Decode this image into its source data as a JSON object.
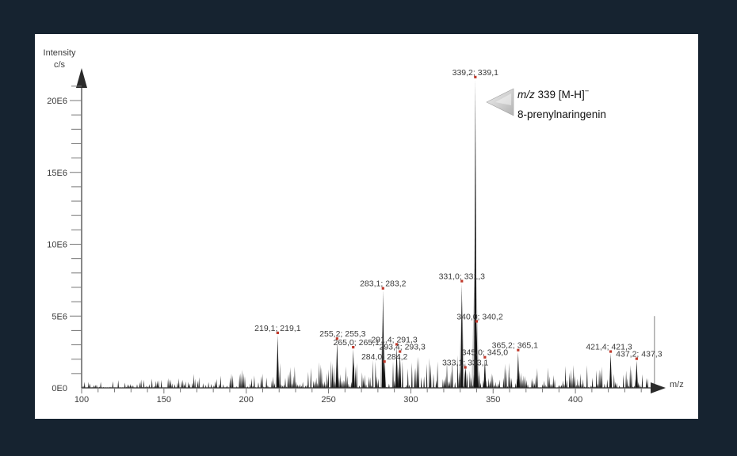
{
  "window": {
    "background_color": "#162330",
    "panel_color": "#ffffff"
  },
  "chart_data": {
    "type": "line",
    "subtype": "mass-spectrum",
    "title": "",
    "xlabel": "m/z",
    "ylabel_lines": [
      "Intensity",
      "c/s"
    ],
    "xlim": [
      100,
      450
    ],
    "ylim_e6": [
      0,
      21.5
    ],
    "grid": false,
    "x_major_ticks": [
      100,
      150,
      200,
      250,
      300,
      350,
      400
    ],
    "x_minor_step": 10,
    "x_minor_range": [
      100,
      440
    ],
    "y_major_ticks_e6": [
      0,
      5,
      10,
      15,
      20
    ],
    "y_major_tick_labels": [
      "0E0",
      "5E6",
      "10E6",
      "15E6",
      "20E6"
    ],
    "y_minor_step_e6": 1,
    "y_minor_top_e6": 21,
    "peaks": [
      {
        "mz": 219.1,
        "height_e6": 3.7,
        "label": "219,1; 219,1",
        "dx": 0,
        "flank": {
          "h": 2.5,
          "w": 3
        }
      },
      {
        "mz": 255.2,
        "height_e6": 3.3,
        "label": "255,2; 255,3",
        "dx": 7,
        "flank": {
          "h": 2.2,
          "w": 3
        }
      },
      {
        "mz": 265.0,
        "height_e6": 2.7,
        "label": "265,0; 265,1",
        "dx": 4,
        "flank": {
          "h": 1.8,
          "w": 2.5
        }
      },
      {
        "mz": 283.1,
        "height_e6": 6.8,
        "label": "283,1; 283,2",
        "dx": 0,
        "flank": {
          "h": 5.0,
          "w": 4
        }
      },
      {
        "mz": 284.0,
        "height_e6": 1.7,
        "label": "284,0; 284,2",
        "dx": 0
      },
      {
        "mz": 291.4,
        "height_e6": 2.9,
        "label": "291,4; 291,3",
        "dx": -3,
        "flank": {
          "h": 2.0,
          "w": 2.5
        }
      },
      {
        "mz": 293.4,
        "height_e6": 2.4,
        "label": "293,4; 293,3",
        "dx": 3
      },
      {
        "mz": 331.0,
        "height_e6": 7.3,
        "label": "331,0; 331,3",
        "dx": 0,
        "flank": {
          "h": 6.5,
          "w": 4
        }
      },
      {
        "mz": 333.1,
        "height_e6": 1.3,
        "label": "333,1; 333,1",
        "dx": 0
      },
      {
        "mz": 339.2,
        "height_e6": 21.5,
        "label": "339,2; 339,1",
        "dx": 0,
        "flank": {
          "h": 10.2,
          "w": 5
        }
      },
      {
        "mz": 340.0,
        "height_e6": 4.5,
        "label": "340,0; 340,2",
        "dx": 4,
        "flank": {
          "h": 3.0,
          "w": 3
        }
      },
      {
        "mz": 345.0,
        "height_e6": 2.0,
        "label": "345,0; 345,0",
        "dx": 0
      },
      {
        "mz": 365.2,
        "height_e6": 2.5,
        "label": "365,2; 365,1",
        "dx": -4
      },
      {
        "mz": 421.4,
        "height_e6": 2.4,
        "label": "421,4; 421,3",
        "dx": -2
      },
      {
        "mz": 437.2,
        "height_e6": 1.9,
        "label": "437,2; 437,3",
        "dx": 3
      }
    ],
    "extra_spikes": [
      {
        "mz": 448.0,
        "height_e6": 5.0,
        "color": "#9d9d9d",
        "width": 1.3
      }
    ],
    "noise_profile": [
      {
        "from": 100,
        "to": 130,
        "amp_e6": 0.55
      },
      {
        "from": 130,
        "to": 160,
        "amp_e6": 0.7
      },
      {
        "from": 160,
        "to": 190,
        "amp_e6": 0.85
      },
      {
        "from": 190,
        "to": 216,
        "amp_e6": 1.1
      },
      {
        "from": 216,
        "to": 233,
        "amp_e6": 1.5
      },
      {
        "from": 233,
        "to": 252,
        "amp_e6": 1.8
      },
      {
        "from": 252,
        "to": 276,
        "amp_e6": 1.9
      },
      {
        "from": 276,
        "to": 300,
        "amp_e6": 2.0
      },
      {
        "from": 300,
        "to": 313,
        "amp_e6": 2.35
      },
      {
        "from": 313,
        "to": 332,
        "amp_e6": 2.0
      },
      {
        "from": 332,
        "to": 352,
        "amp_e6": 1.8
      },
      {
        "from": 352,
        "to": 376,
        "amp_e6": 1.5
      },
      {
        "from": 376,
        "to": 416,
        "amp_e6": 1.4
      },
      {
        "from": 416,
        "to": 447,
        "amp_e6": 1.6
      }
    ],
    "colors": {
      "spike": "#141414",
      "noise": "#1d1d1d",
      "flank": "#b5b5b5",
      "marker": "#c0392b",
      "peak_label": "#3a3a3a",
      "axis_line": "#3a3a3a",
      "tick": "#777777",
      "axis_text": "#3b3b3b",
      "arrowhead": "#2b2b2b"
    },
    "annotation": {
      "line1_italic": "m/z",
      "line1_rest": " 339 [M-H]",
      "line1_sup": "−",
      "line2": "8-prenylnaringenin"
    }
  }
}
